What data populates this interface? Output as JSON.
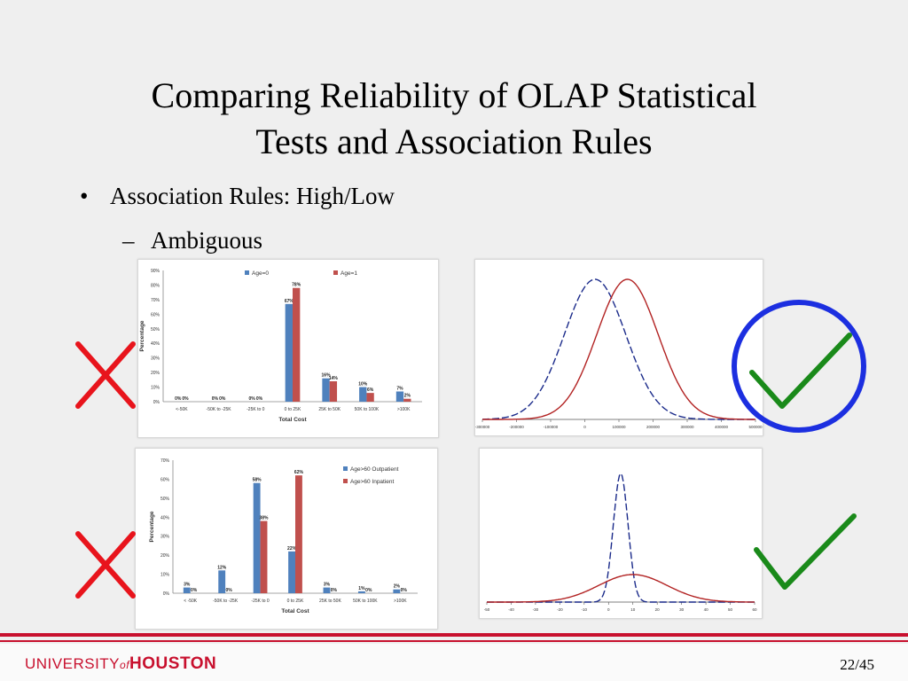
{
  "slide": {
    "title_line1": "Comparing Reliability of OLAP Statistical",
    "title_line2": "Tests and Association Rules",
    "bullet_symbol": "•",
    "bullet": "Association Rules: High/Low",
    "sub_symbol": "–",
    "sub_bullet": "Ambiguous",
    "page_number": "22/45",
    "logo_text_1": "UNIVERSITY",
    "logo_text_2": "of",
    "logo_text_3": "HOUSTON"
  },
  "colors": {
    "blue_series": "#4f81bd",
    "red_series": "#c0504d",
    "curve_blue": "#1a2a8a",
    "curve_red": "#b22222",
    "cross": "#e8141c",
    "check": "#1a8a1a",
    "circle": "#1c2fe0",
    "brand_red": "#c8102e"
  },
  "marks": {
    "top_left": "cross",
    "bottom_left": "cross",
    "top_right": "check-circled",
    "bottom_right": "check"
  },
  "chart_data": [
    {
      "type": "bar",
      "categories": [
        "<-50K",
        "-50K to -25K",
        "-25K to 0",
        "0 to 25K",
        "25K to 50K",
        "50K to 100K",
        ">100K"
      ],
      "series": [
        {
          "name": "Age=0",
          "values": [
            0,
            0,
            0,
            67,
            16,
            10,
            7
          ],
          "labels": [
            "0%",
            "0%",
            "0%",
            "67%",
            "16%",
            "10%",
            "7%"
          ]
        },
        {
          "name": "Age=1",
          "values": [
            0,
            0,
            0,
            78,
            14,
            6,
            2
          ],
          "labels": [
            "0%",
            "0%",
            "0%",
            "78%",
            "14%",
            "6%",
            "2%"
          ]
        }
      ],
      "ylabel": "Percentage",
      "xlabel": "Total Cost",
      "ylim": [
        0,
        90
      ],
      "yticks": [
        "0%",
        "10%",
        "20%",
        "30%",
        "40%",
        "50%",
        "60%",
        "70%",
        "80%",
        "90%"
      ],
      "legend": "top"
    },
    {
      "type": "line",
      "series": [
        {
          "style": "dashed",
          "mean": 30000,
          "sd": 90000
        },
        {
          "style": "solid",
          "mean": 125000,
          "sd": 90000
        }
      ],
      "xticks": [
        "-300000",
        "-200000",
        "-100000",
        "0",
        "100000",
        "200000",
        "300000",
        "400000",
        "500000"
      ],
      "xlim": [
        -300000,
        500000
      ]
    },
    {
      "type": "bar",
      "categories": [
        "< -50K",
        "-50K to -25K",
        "-25K to 0",
        "0 to 25K",
        "25K to 50K",
        "50K to 100K",
        ">100K"
      ],
      "series": [
        {
          "name": "Age>60 Outpatient",
          "values": [
            3,
            12,
            58,
            22,
            3,
            1,
            2
          ],
          "labels": [
            "3%",
            "12%",
            "58%",
            "22%",
            "3%",
            "1%",
            "2%"
          ]
        },
        {
          "name": "Age>60 Inpatient",
          "values": [
            0,
            0,
            38,
            62,
            0,
            0,
            0
          ],
          "labels": [
            "0%",
            "0%",
            "38%",
            "62%",
            "0%",
            "0%",
            "0%"
          ]
        }
      ],
      "ylabel": "Percentage",
      "xlabel": "Total Cost",
      "ylim": [
        0,
        70
      ],
      "yticks": [
        "0%",
        "10%",
        "20%",
        "30%",
        "40%",
        "50%",
        "60%",
        "70%"
      ],
      "legend": "top-right"
    },
    {
      "type": "line",
      "series": [
        {
          "style": "dashed",
          "mean": 5,
          "sd": 3
        },
        {
          "style": "solid",
          "mean": 10,
          "sd": 14
        }
      ],
      "xticks": [
        "-50",
        "-40",
        "-30",
        "-20",
        "-10",
        "0",
        "10",
        "20",
        "30",
        "40",
        "50",
        "60"
      ],
      "xlim": [
        -50,
        60
      ]
    }
  ]
}
